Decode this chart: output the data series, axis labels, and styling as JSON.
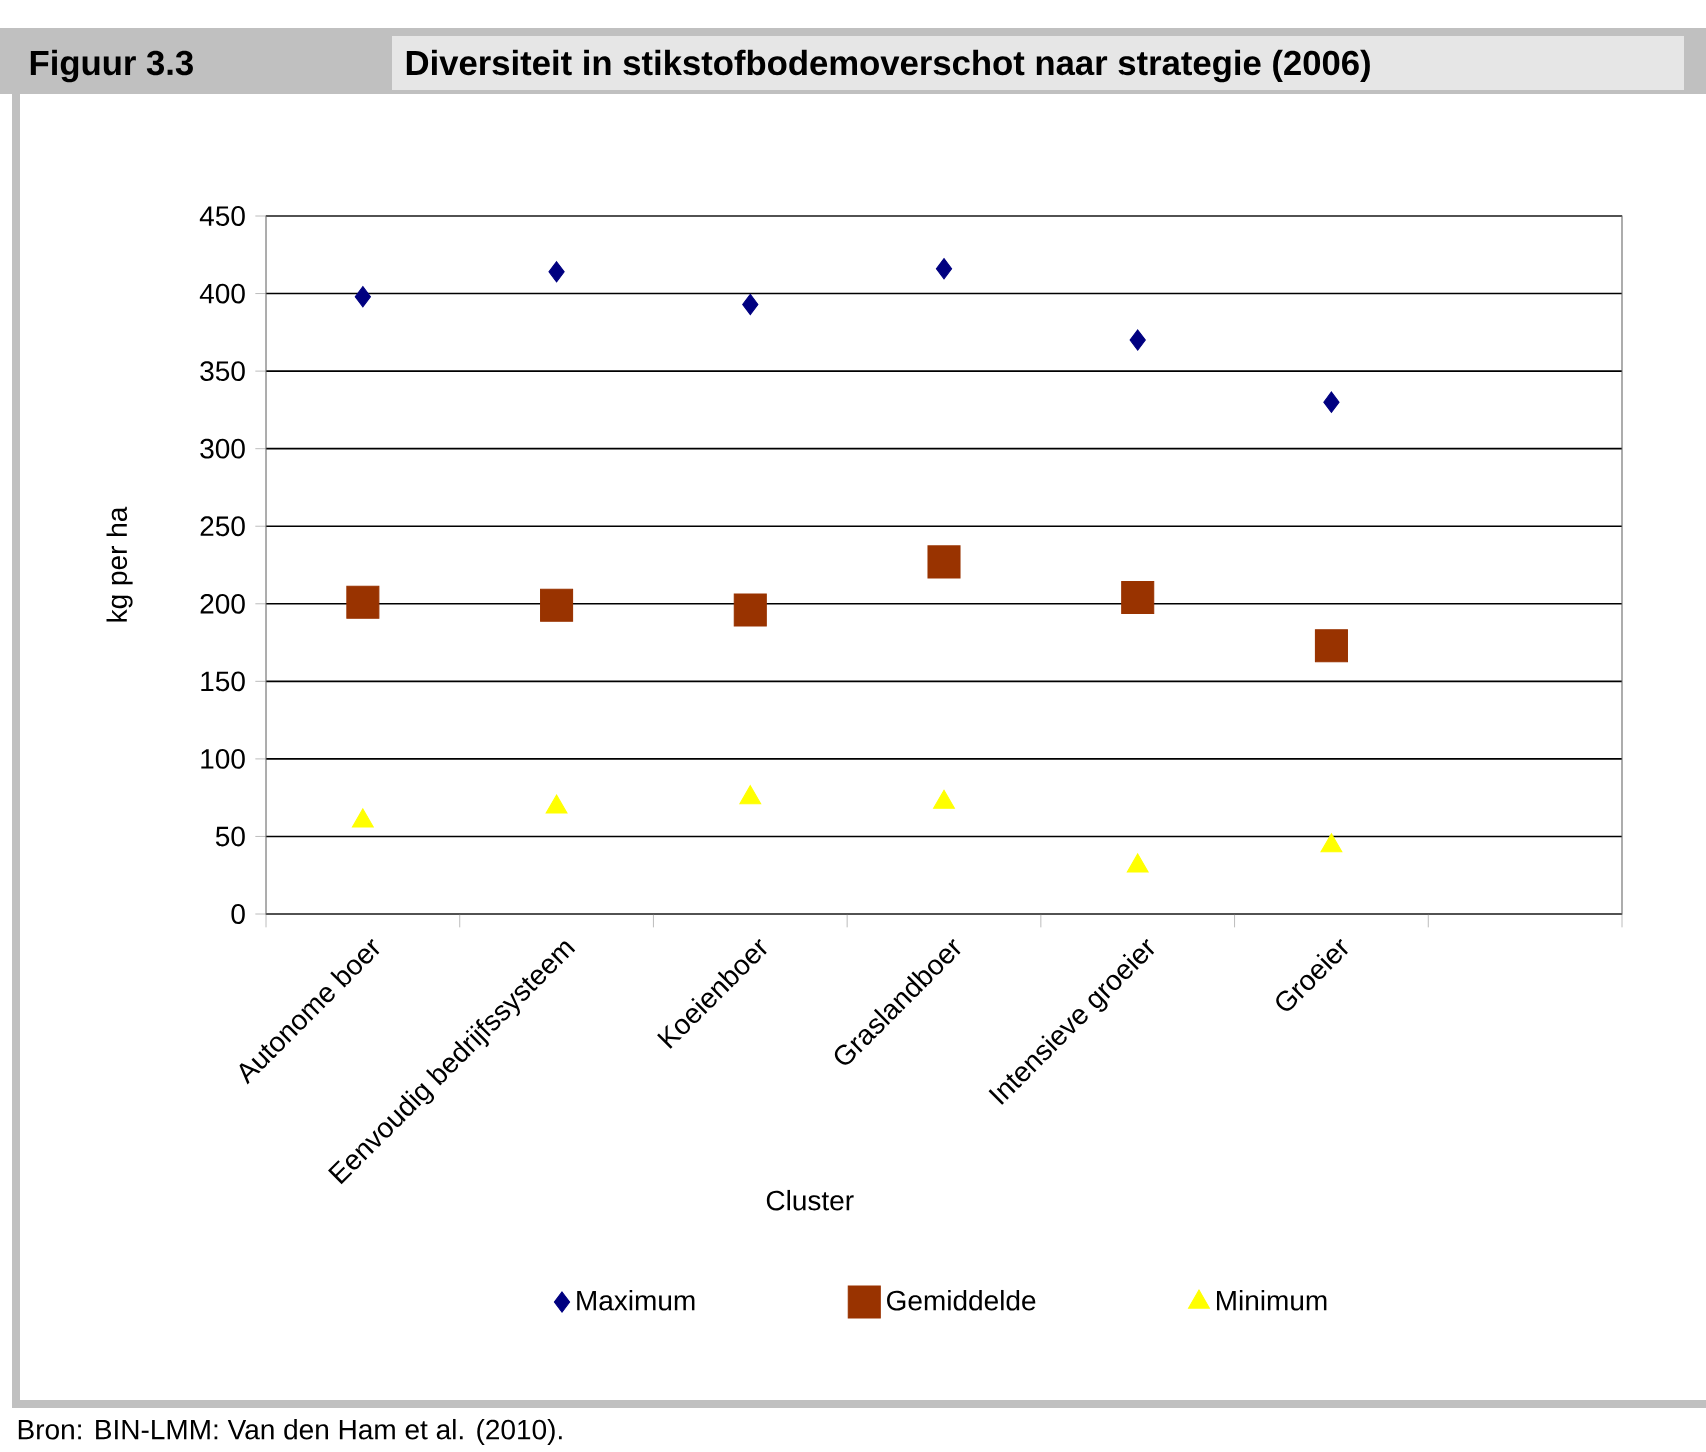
{
  "chart_data": {
    "type": "scatter",
    "title": "Diversiteit in stikstofbodemoverschot naar strategie (2006)",
    "xlabel": "Cluster",
    "ylabel": "kg per ha",
    "categories": [
      "Autonome boer",
      "Eenvoudig bedrijfssysteem",
      "Koeienboer",
      "Graslandboer",
      "Intensieve groeier",
      "Groeier",
      null
    ],
    "series": [
      {
        "name": "Maximum",
        "color": "#000080",
        "marker": "diamond",
        "values": [
          398,
          414,
          393,
          416,
          370,
          330,
          null
        ]
      },
      {
        "name": "Gemiddelde",
        "color": "#993300",
        "marker": "square",
        "values": [
          201,
          199,
          196,
          227,
          204,
          173,
          null
        ]
      },
      {
        "name": "Minimum",
        "color": "#ffff00",
        "marker": "triangle",
        "values": [
          60,
          69,
          75,
          72,
          31,
          44,
          null
        ]
      }
    ],
    "ylim": [
      0,
      450
    ],
    "yticks": [
      0,
      50,
      100,
      150,
      200,
      250,
      300,
      350,
      400,
      450
    ],
    "grid": "y",
    "legend": "bottom",
    "annotations": [
      "Figuur 3.3",
      "Bron: BIN-LMM: Van den Ham et al. (2010)."
    ]
  }
}
